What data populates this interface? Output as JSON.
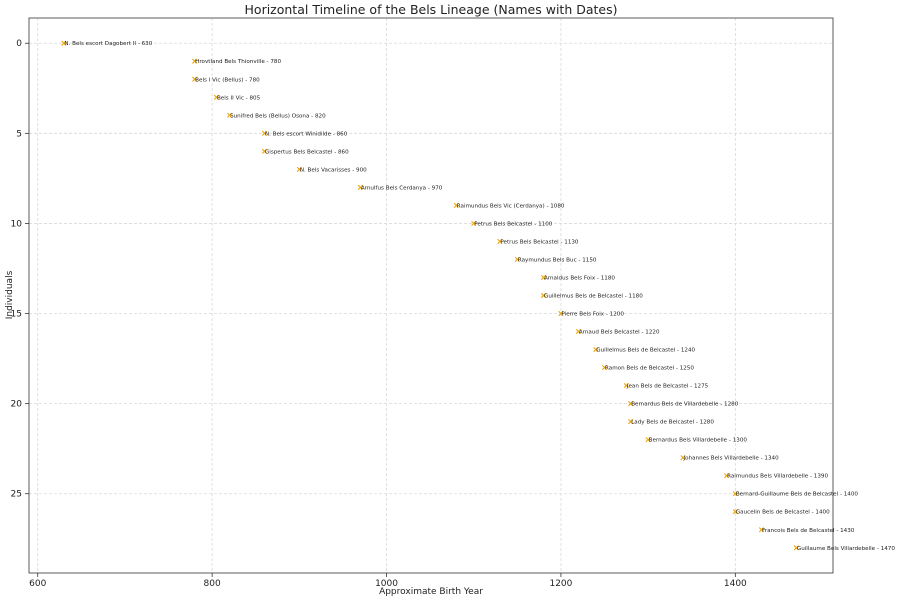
{
  "chart_data": {
    "type": "scatter",
    "title": "Horizontal Timeline of the Bels Lineage (Names with Dates)",
    "xlabel": "Approximate Birth Year",
    "ylabel": "Individuals",
    "xlim": [
      590,
      1512
    ],
    "ylim": [
      29.4,
      -1.4
    ],
    "y_inverted": true,
    "grid": true,
    "marker": "x",
    "marker_color": "#f0a500",
    "xticks": [
      600,
      800,
      1000,
      1200,
      1400
    ],
    "yticks": [
      0,
      5,
      10,
      15,
      20,
      25
    ],
    "points": [
      {
        "x": 630,
        "y": 0,
        "label": "N. Bels escort Dagobert II - 630"
      },
      {
        "x": 780,
        "y": 1,
        "label": "Hrovtland Bels Thionville - 780"
      },
      {
        "x": 780,
        "y": 2,
        "label": "Bels I Vic (Bellus) - 780"
      },
      {
        "x": 805,
        "y": 3,
        "label": "Bels II Vic - 805"
      },
      {
        "x": 820,
        "y": 4,
        "label": "Sunifred Bels (Bellus) Osona - 820"
      },
      {
        "x": 860,
        "y": 5,
        "label": "N. Bels escort Winidilde - 860"
      },
      {
        "x": 860,
        "y": 6,
        "label": "Gispertus Bels Belcastel - 860"
      },
      {
        "x": 900,
        "y": 7,
        "label": "N. Bels Vacarisses - 900"
      },
      {
        "x": 970,
        "y": 8,
        "label": "Arnulfus Bels Cerdanya - 970"
      },
      {
        "x": 1080,
        "y": 9,
        "label": "Raimundus Bels Vic (Cerdanya) - 1080"
      },
      {
        "x": 1100,
        "y": 10,
        "label": "Petrus Bels Belcastel - 1100"
      },
      {
        "x": 1130,
        "y": 11,
        "label": "Petrus Bels Belcastel - 1130"
      },
      {
        "x": 1150,
        "y": 12,
        "label": "Raymundus Bels Buc - 1150"
      },
      {
        "x": 1180,
        "y": 13,
        "label": "Arnaldus Bels Foix - 1180"
      },
      {
        "x": 1180,
        "y": 14,
        "label": "Guillelmus Bels de Belcastel - 1180"
      },
      {
        "x": 1200,
        "y": 15,
        "label": "Pierre Bels Foix - 1200"
      },
      {
        "x": 1220,
        "y": 16,
        "label": "Arnaud Bels Belcastel - 1220"
      },
      {
        "x": 1240,
        "y": 17,
        "label": "Guillelmus Bels de Belcastel - 1240"
      },
      {
        "x": 1250,
        "y": 18,
        "label": "Ramon Bels de Belcastel - 1250"
      },
      {
        "x": 1275,
        "y": 19,
        "label": "Jean Bels de Belcastel - 1275"
      },
      {
        "x": 1280,
        "y": 20,
        "label": "Bernardus Bels de Villardebelle - 1280"
      },
      {
        "x": 1280,
        "y": 21,
        "label": "Lady Bels de Belcastel - 1280"
      },
      {
        "x": 1300,
        "y": 22,
        "label": "Bernardus Bels Villardebelle - 1300"
      },
      {
        "x": 1340,
        "y": 23,
        "label": "Johannes Bels Villardebelle - 1340"
      },
      {
        "x": 1390,
        "y": 24,
        "label": "Raimundus Bels Villardebelle - 1390"
      },
      {
        "x": 1400,
        "y": 25,
        "label": "Bernard-Guillaume Bels de Belcastel - 1400"
      },
      {
        "x": 1400,
        "y": 26,
        "label": "Gaucelin Bels de Belcastel - 1400"
      },
      {
        "x": 1430,
        "y": 27,
        "label": "Francois Bels de Belcastel - 1430"
      },
      {
        "x": 1470,
        "y": 28,
        "label": "Guillaume Bels Villardebelle - 1470"
      }
    ]
  }
}
